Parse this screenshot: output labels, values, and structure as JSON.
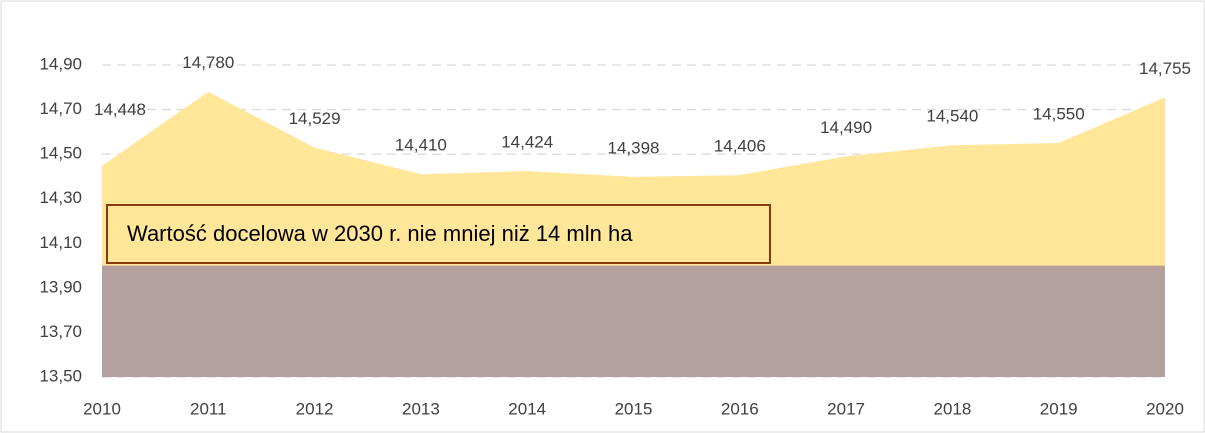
{
  "chart_data": {
    "type": "area",
    "categories": [
      "2010",
      "2011",
      "2012",
      "2013",
      "2014",
      "2015",
      "2016",
      "2017",
      "2018",
      "2019",
      "2020"
    ],
    "series": [
      {
        "color": "#ffe699",
        "values": [
          14.448,
          14.78,
          14.529,
          14.41,
          14.424,
          14.398,
          14.406,
          14.49,
          14.54,
          14.55,
          14.755
        ],
        "value_labels": [
          "14,448",
          "14,780",
          "14,529",
          "14,410",
          "14,424",
          "14,398",
          "14,406",
          "14,490",
          "14,540",
          "14,550",
          "14,755"
        ]
      },
      {
        "color": "#b4a09e",
        "values": [
          14,
          14,
          14,
          14,
          14,
          14,
          14,
          14,
          14,
          14,
          14
        ]
      }
    ],
    "ylim": [
      13.5,
      14.9
    ],
    "yticks": [
      {
        "value": 13.5,
        "label": "13,50"
      },
      {
        "value": 13.7,
        "label": "13,70"
      },
      {
        "value": 13.9,
        "label": "13,90"
      },
      {
        "value": 14.1,
        "label": "14,10"
      },
      {
        "value": 14.3,
        "label": "14,30"
      },
      {
        "value": 14.5,
        "label": "14,50"
      },
      {
        "value": 14.7,
        "label": "14,70"
      },
      {
        "value": 14.9,
        "label": "14,90"
      }
    ],
    "grid": true,
    "annotation": "Wartość docelowa w 2030 r. nie mniej niż 14 mln ha"
  }
}
